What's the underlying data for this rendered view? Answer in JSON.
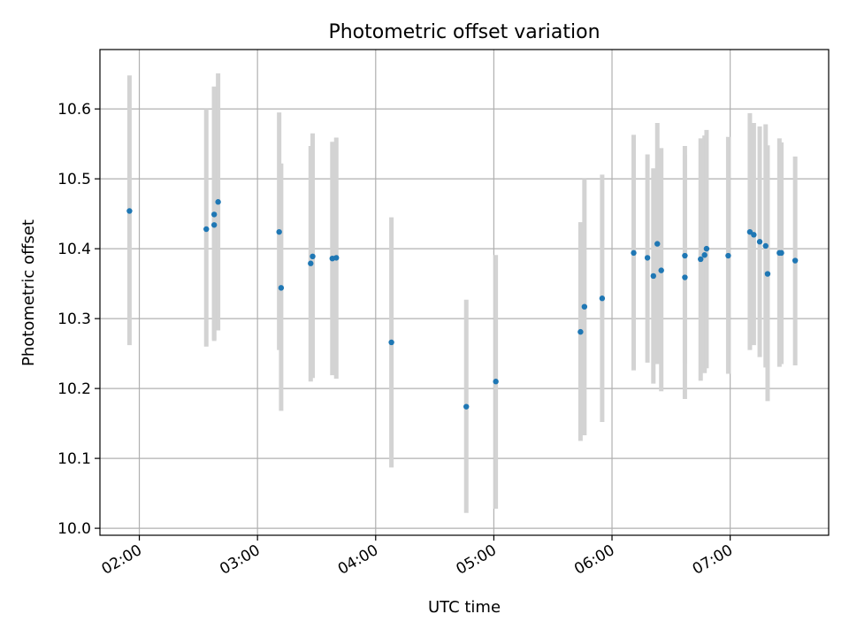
{
  "chart_data": {
    "type": "scatter",
    "title": "Photometric offset variation",
    "xlabel": "UTC time",
    "ylabel": "Photometric offset",
    "x_tick_labels": [
      "02:00",
      "03:00",
      "04:00",
      "05:00",
      "06:00",
      "07:00"
    ],
    "y_tick_labels": [
      "10.0",
      "10.1",
      "10.2",
      "10.3",
      "10.4",
      "10.5",
      "10.6"
    ],
    "xlim": [
      "01:40",
      "07:50"
    ],
    "ylim": [
      9.99,
      10.685
    ],
    "grid": true,
    "marker_color": "#1f77b4",
    "errorbar_color": "#d3d3d3",
    "points": [
      {
        "t": "01:55",
        "y": 10.454,
        "lo": 10.262,
        "hi": 10.648
      },
      {
        "t": "02:34",
        "y": 10.428,
        "lo": 10.26,
        "hi": 10.6
      },
      {
        "t": "02:38",
        "y": 10.434,
        "lo": 10.268,
        "hi": 10.632
      },
      {
        "t": "02:38",
        "y": 10.449,
        "lo": 10.27,
        "hi": 10.632
      },
      {
        "t": "02:40",
        "y": 10.467,
        "lo": 10.283,
        "hi": 10.651
      },
      {
        "t": "03:11",
        "y": 10.424,
        "lo": 10.255,
        "hi": 10.595
      },
      {
        "t": "03:12",
        "y": 10.344,
        "lo": 10.168,
        "hi": 10.522
      },
      {
        "t": "03:27",
        "y": 10.379,
        "lo": 10.21,
        "hi": 10.547
      },
      {
        "t": "03:28",
        "y": 10.389,
        "lo": 10.215,
        "hi": 10.565
      },
      {
        "t": "03:38",
        "y": 10.386,
        "lo": 10.219,
        "hi": 10.553
      },
      {
        "t": "03:40",
        "y": 10.387,
        "lo": 10.214,
        "hi": 10.559
      },
      {
        "t": "04:08",
        "y": 10.266,
        "lo": 10.087,
        "hi": 10.445
      },
      {
        "t": "04:46",
        "y": 10.174,
        "lo": 10.022,
        "hi": 10.327
      },
      {
        "t": "05:01",
        "y": 10.21,
        "lo": 10.028,
        "hi": 10.391
      },
      {
        "t": "05:44",
        "y": 10.281,
        "lo": 10.125,
        "hi": 10.438
      },
      {
        "t": "05:46",
        "y": 10.317,
        "lo": 10.133,
        "hi": 10.5
      },
      {
        "t": "05:55",
        "y": 10.329,
        "lo": 10.152,
        "hi": 10.506
      },
      {
        "t": "06:11",
        "y": 10.394,
        "lo": 10.226,
        "hi": 10.563
      },
      {
        "t": "06:18",
        "y": 10.387,
        "lo": 10.237,
        "hi": 10.535
      },
      {
        "t": "06:21",
        "y": 10.361,
        "lo": 10.207,
        "hi": 10.515
      },
      {
        "t": "06:23",
        "y": 10.407,
        "lo": 10.235,
        "hi": 10.58
      },
      {
        "t": "06:25",
        "y": 10.369,
        "lo": 10.196,
        "hi": 10.544
      },
      {
        "t": "06:37",
        "y": 10.39,
        "lo": 10.236,
        "hi": 10.547
      },
      {
        "t": "06:37",
        "y": 10.359,
        "lo": 10.185,
        "hi": 10.534
      },
      {
        "t": "06:45",
        "y": 10.385,
        "lo": 10.211,
        "hi": 10.558
      },
      {
        "t": "06:47",
        "y": 10.391,
        "lo": 10.222,
        "hi": 10.562
      },
      {
        "t": "06:48",
        "y": 10.4,
        "lo": 10.229,
        "hi": 10.57
      },
      {
        "t": "06:59",
        "y": 10.39,
        "lo": 10.221,
        "hi": 10.56
      },
      {
        "t": "07:10",
        "y": 10.424,
        "lo": 10.255,
        "hi": 10.594
      },
      {
        "t": "07:12",
        "y": 10.42,
        "lo": 10.262,
        "hi": 10.58
      },
      {
        "t": "07:15",
        "y": 10.41,
        "lo": 10.245,
        "hi": 10.575
      },
      {
        "t": "07:18",
        "y": 10.404,
        "lo": 10.23,
        "hi": 10.578
      },
      {
        "t": "07:19",
        "y": 10.364,
        "lo": 10.182,
        "hi": 10.548
      },
      {
        "t": "07:25",
        "y": 10.394,
        "lo": 10.231,
        "hi": 10.558
      },
      {
        "t": "07:26",
        "y": 10.394,
        "lo": 10.235,
        "hi": 10.552
      },
      {
        "t": "07:33",
        "y": 10.383,
        "lo": 10.233,
        "hi": 10.532
      }
    ]
  }
}
